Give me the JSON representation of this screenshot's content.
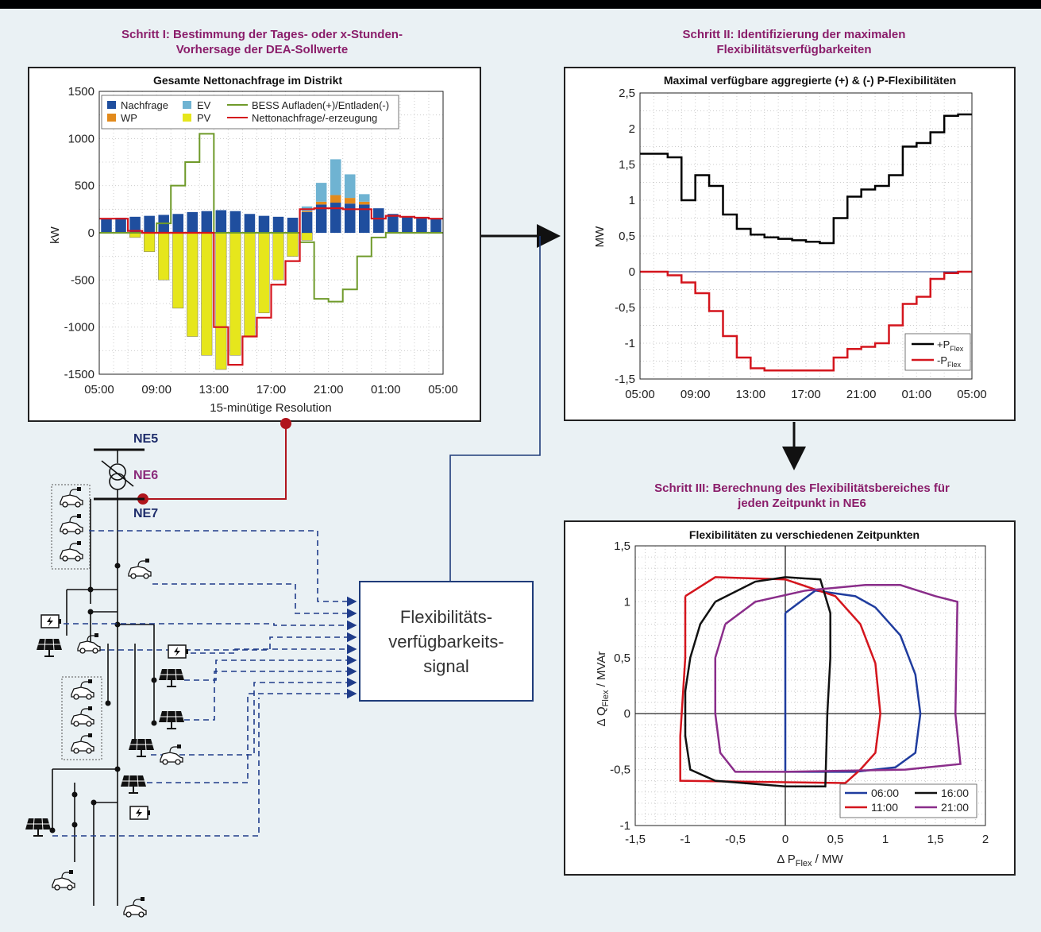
{
  "step1": {
    "line1": "Schritt I: Bestimmung der Tages- oder x-Stunden-",
    "line2": "Vorhersage der DEA-Sollwerte"
  },
  "step2": {
    "line1": "Schritt II: Identifizierung der maximalen",
    "line2": "Flexibilitätsverfügbarkeiten"
  },
  "step3": {
    "line1": "Schritt III: Berechnung des Flexibilitätsbereiches für",
    "line2": "jeden Zeitpunkt in NE6"
  },
  "network": {
    "ne5": "NE5",
    "ne6": "NE6",
    "ne7": "NE7"
  },
  "signal": {
    "line1": "Flexibilitäts-",
    "line2": "verfügbarkeits-",
    "line3": "signal"
  },
  "colors": {
    "step_title": "#8a1d6a",
    "ne5": "#1f2d6b",
    "ne6": "#8a2a7a",
    "ne7": "#1f2d6b",
    "signal_line": "#1f3c7a",
    "red_line": "#b0151d",
    "dashed": "#1f3c8a"
  },
  "chart_data": [
    {
      "type": "bar",
      "title": "Gesamte Nettonachfrage im Distrikt",
      "xlabel": "15-minütige Resolution",
      "ylabel": "kW",
      "ylim": [
        -1500,
        1500
      ],
      "yticks": [
        "1500",
        "1000",
        "500",
        "0",
        "-500",
        "-1000",
        "-1500"
      ],
      "xticks": [
        "05:00",
        "09:00",
        "13:00",
        "17:00",
        "21:00",
        "01:00",
        "05:00"
      ],
      "grid": true,
      "legend_position": "top",
      "legend": {
        "nachfrage": "Nachfrage",
        "ev": "EV",
        "wp": "WP",
        "pv": "PV",
        "bess": "BESS Aufladen(+)/Entladen(-)",
        "net": "Nettonachfrage/-erzeugung"
      },
      "series_colors": {
        "Nachfrage": "#1f4e9e",
        "EV": "#6fb3d2",
        "WP": "#e28a1c",
        "PV": "#e6e61c",
        "BESS": "#6f9a2a",
        "Net": "#d4151d"
      },
      "x_hours": [
        5,
        6,
        7,
        8,
        9,
        10,
        11,
        12,
        13,
        14,
        15,
        16,
        17,
        18,
        19,
        20,
        21,
        22,
        23,
        24,
        25,
        26,
        27,
        28,
        29
      ],
      "series": [
        {
          "name": "Nachfrage",
          "values": [
            150,
            160,
            170,
            180,
            190,
            200,
            220,
            230,
            240,
            230,
            200,
            180,
            170,
            160,
            220,
            300,
            320,
            310,
            300,
            260,
            200,
            170,
            160,
            150,
            150
          ]
        },
        {
          "name": "EV",
          "values": [
            0,
            0,
            0,
            0,
            0,
            0,
            0,
            0,
            0,
            0,
            0,
            0,
            0,
            0,
            50,
            200,
            380,
            250,
            80,
            0,
            0,
            0,
            0,
            0,
            0
          ]
        },
        {
          "name": "WP",
          "values": [
            0,
            0,
            0,
            0,
            0,
            0,
            0,
            0,
            0,
            0,
            0,
            0,
            0,
            0,
            10,
            30,
            80,
            60,
            30,
            0,
            0,
            0,
            0,
            0,
            0
          ]
        },
        {
          "name": "PV",
          "values": [
            0,
            0,
            -50,
            -200,
            -500,
            -800,
            -1100,
            -1300,
            -1450,
            -1300,
            -1100,
            -850,
            -500,
            -250,
            -80,
            0,
            0,
            0,
            0,
            0,
            0,
            0,
            0,
            0,
            0
          ]
        },
        {
          "name": "BESS Aufladen(+)/Entladen(-)",
          "values": [
            0,
            0,
            0,
            0,
            100,
            500,
            750,
            1050,
            0,
            0,
            0,
            0,
            0,
            0,
            -100,
            -700,
            -730,
            -600,
            -250,
            -50,
            0,
            0,
            0,
            0,
            0
          ]
        },
        {
          "name": "Nettonachfrage/-erzeugung",
          "values": [
            150,
            150,
            20,
            0,
            0,
            0,
            0,
            0,
            -1000,
            -1400,
            -1100,
            -900,
            -550,
            -300,
            250,
            260,
            260,
            250,
            250,
            150,
            180,
            170,
            160,
            150,
            150
          ]
        }
      ]
    },
    {
      "type": "line",
      "title": "Maximal verfügbare aggregierte (+) & (-) P-Flexibilitäten",
      "ylabel": "MW",
      "ylim": [
        -1.5,
        2.5
      ],
      "yticks": [
        "2,5",
        "2",
        "1,5",
        "1",
        "0,5",
        "0",
        "-0,5",
        "-1",
        "-1,5"
      ],
      "xticks": [
        "05:00",
        "09:00",
        "13:00",
        "17:00",
        "21:00",
        "01:00",
        "05:00"
      ],
      "grid": true,
      "legend_position": "bottom-right",
      "legend": {
        "plus": "+P",
        "plus_sub": "Flex",
        "minus": "-P",
        "minus_sub": "Flex"
      },
      "x_hours": [
        5,
        6,
        7,
        8,
        9,
        10,
        11,
        12,
        13,
        14,
        15,
        16,
        17,
        18,
        19,
        20,
        21,
        22,
        23,
        24,
        25,
        26,
        27,
        28,
        29
      ],
      "series": [
        {
          "name": "+P Flex",
          "color": "#000000",
          "values": [
            1.65,
            1.65,
            1.6,
            1.0,
            1.35,
            1.2,
            0.8,
            0.6,
            0.52,
            0.48,
            0.46,
            0.44,
            0.42,
            0.4,
            0.75,
            1.05,
            1.15,
            1.2,
            1.35,
            1.75,
            1.8,
            1.95,
            2.18,
            2.2,
            2.2
          ]
        },
        {
          "name": "-P Flex",
          "color": "#d4151d",
          "values": [
            0,
            0,
            -0.05,
            -0.15,
            -0.3,
            -0.55,
            -0.9,
            -1.2,
            -1.35,
            -1.38,
            -1.38,
            -1.38,
            -1.38,
            -1.38,
            -1.2,
            -1.08,
            -1.05,
            -1.0,
            -0.75,
            -0.45,
            -0.35,
            -0.1,
            -0.02,
            0,
            0
          ]
        }
      ]
    },
    {
      "type": "line",
      "title": "Flexibilitäten zu verschiedenen Zeitpunkten",
      "xlabel": "Δ P",
      "xlabel_sub": "Flex",
      "xlabel_unit": " / MW",
      "ylabel": "Δ Q",
      "ylabel_sub": "Flex",
      "ylabel_unit": " / MVAr",
      "xlim": [
        -1.5,
        2
      ],
      "ylim": [
        -1,
        1.5
      ],
      "xticks": [
        "-1,5",
        "-1",
        "-0,5",
        "0",
        "0,5",
        "1",
        "1,5",
        "2"
      ],
      "yticks": [
        "1,5",
        "1",
        "0,5",
        "0",
        "-0,5",
        "-1"
      ],
      "grid": true,
      "legend_position": "bottom-right",
      "series": [
        {
          "name": "06:00",
          "color": "#1f3c9e",
          "points": [
            [
              0,
              0.9
            ],
            [
              0.3,
              1.1
            ],
            [
              0.7,
              1.05
            ],
            [
              0.9,
              0.95
            ],
            [
              1.15,
              0.7
            ],
            [
              1.3,
              0.35
            ],
            [
              1.35,
              0
            ],
            [
              1.3,
              -0.35
            ],
            [
              1.1,
              -0.48
            ],
            [
              0.7,
              -0.52
            ],
            [
              0,
              -0.52
            ],
            [
              0,
              0.9
            ]
          ]
        },
        {
          "name": "11:00",
          "color": "#d4151d",
          "points": [
            [
              -1,
              1.05
            ],
            [
              -0.7,
              1.22
            ],
            [
              0,
              1.2
            ],
            [
              0.5,
              1.05
            ],
            [
              0.75,
              0.8
            ],
            [
              0.9,
              0.45
            ],
            [
              0.95,
              0
            ],
            [
              0.9,
              -0.35
            ],
            [
              0.75,
              -0.5
            ],
            [
              0.6,
              -0.62
            ],
            [
              -1.05,
              -0.6
            ],
            [
              -1.05,
              -0.2
            ],
            [
              -1,
              0.5
            ],
            [
              -1,
              1.05
            ]
          ]
        },
        {
          "name": "16:00",
          "color": "#111111",
          "points": [
            [
              -0.7,
              1.0
            ],
            [
              -0.3,
              1.18
            ],
            [
              0,
              1.22
            ],
            [
              0.35,
              1.2
            ],
            [
              0.45,
              0.9
            ],
            [
              0.45,
              0.5
            ],
            [
              0.42,
              0
            ],
            [
              0.4,
              -0.65
            ],
            [
              0,
              -0.65
            ],
            [
              -0.7,
              -0.6
            ],
            [
              -0.95,
              -0.5
            ],
            [
              -1.0,
              -0.2
            ],
            [
              -1.0,
              0.2
            ],
            [
              -0.95,
              0.5
            ],
            [
              -0.85,
              0.8
            ],
            [
              -0.7,
              1.0
            ]
          ]
        },
        {
          "name": "21:00",
          "color": "#8a2d8a",
          "points": [
            [
              -0.6,
              0.8
            ],
            [
              -0.3,
              1.0
            ],
            [
              0.2,
              1.1
            ],
            [
              0.8,
              1.15
            ],
            [
              1.15,
              1.15
            ],
            [
              1.5,
              1.05
            ],
            [
              1.72,
              1.0
            ],
            [
              1.7,
              0
            ],
            [
              1.75,
              -0.45
            ],
            [
              1.2,
              -0.5
            ],
            [
              0,
              -0.52
            ],
            [
              -0.5,
              -0.52
            ],
            [
              -0.65,
              -0.35
            ],
            [
              -0.7,
              0
            ],
            [
              -0.7,
              0.5
            ],
            [
              -0.6,
              0.8
            ]
          ]
        }
      ]
    }
  ]
}
